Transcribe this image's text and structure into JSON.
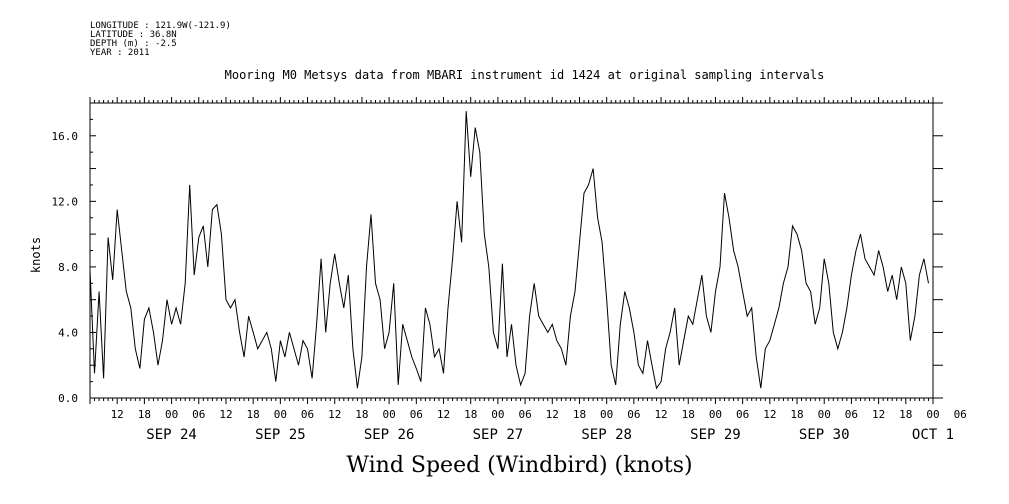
{
  "header": {
    "longitude": "LONGITUDE : 121.9W(-121.9)",
    "latitude": "LATITUDE : 36.8N",
    "depth": "DEPTH (m) : -2.5",
    "year": "YEAR : 2011"
  },
  "chart_data": {
    "type": "line",
    "title": "Mooring M0 Metsys data from MBARI instrument id 1424 at original sampling intervals",
    "xlabel": "Wind Speed (Windbird) (knots)",
    "ylabel": "knots",
    "x_unit": "hours since SEP 23 06:00, 2011",
    "xlim": [
      0,
      186
    ],
    "ylim": [
      0,
      18
    ],
    "y_ticks": [
      "0.0",
      "4.0",
      "8.0",
      "12.0",
      "16.0"
    ],
    "x_hour_ticks": [
      "12",
      "18",
      "00",
      "06",
      "12",
      "18",
      "00",
      "06",
      "12",
      "18",
      "00",
      "06",
      "12",
      "18",
      "00",
      "06",
      "12",
      "18",
      "00",
      "06",
      "12",
      "18",
      "00",
      "06",
      "12",
      "18",
      "00",
      "06",
      "12",
      "18",
      "00",
      "06"
    ],
    "x_day_labels": [
      "SEP 24",
      "SEP 25",
      "SEP 26",
      "SEP 27",
      "SEP 28",
      "SEP 29",
      "SEP 30",
      "OCT  1"
    ],
    "grid": false,
    "series": [
      {
        "name": "",
        "x": [
          0,
          1,
          2,
          3,
          4,
          5,
          6,
          7,
          8,
          9,
          10,
          11,
          12,
          13,
          14,
          15,
          16,
          17,
          18,
          19,
          20,
          21,
          22,
          23,
          24,
          25,
          26,
          27,
          28,
          29,
          30,
          31,
          32,
          33,
          34,
          35,
          36,
          37,
          38,
          39,
          40,
          41,
          42,
          43,
          44,
          45,
          46,
          47,
          48,
          49,
          50,
          51,
          52,
          53,
          54,
          55,
          56,
          57,
          58,
          59,
          60,
          61,
          62,
          63,
          64,
          65,
          66,
          67,
          68,
          69,
          70,
          71,
          72,
          73,
          74,
          75,
          76,
          77,
          78,
          79,
          80,
          81,
          82,
          83,
          84,
          85,
          86,
          87,
          88,
          89,
          90,
          91,
          92,
          93,
          94,
          95,
          96,
          97,
          98,
          99,
          100,
          101,
          102,
          103,
          104,
          105,
          106,
          107,
          108,
          109,
          110,
          111,
          112,
          113,
          114,
          115,
          116,
          117,
          118,
          119,
          120,
          121,
          122,
          123,
          124,
          125,
          126,
          127,
          128,
          129,
          130,
          131,
          132,
          133,
          134,
          135,
          136,
          137,
          138,
          139,
          140,
          141,
          142,
          143,
          144,
          145,
          146,
          147,
          148,
          149,
          150,
          151,
          152,
          153,
          154,
          155,
          156,
          157,
          158,
          159,
          160,
          161,
          162,
          163,
          164,
          165,
          166,
          167,
          168,
          169,
          170,
          171,
          172,
          173,
          174,
          175,
          176,
          177,
          178,
          179,
          180,
          181,
          182,
          183,
          184,
          185
        ],
        "values": [
          7.8,
          1.5,
          6.5,
          1.2,
          9.8,
          7.2,
          11.5,
          9.0,
          6.5,
          5.5,
          3.0,
          1.8,
          4.8,
          5.5,
          4.0,
          2.0,
          3.5,
          6.0,
          4.5,
          5.5,
          4.5,
          7.0,
          13.0,
          7.5,
          9.8,
          10.5,
          8.0,
          11.5,
          11.8,
          10.0,
          6.0,
          5.5,
          6.0,
          4.0,
          2.5,
          5.0,
          4.0,
          3.0,
          3.5,
          4.0,
          3.0,
          1.0,
          3.5,
          2.5,
          4.0,
          3.0,
          2.0,
          3.5,
          3.0,
          1.2,
          4.5,
          8.5,
          4.0,
          7.0,
          8.8,
          7.0,
          5.5,
          7.5,
          3.0,
          0.6,
          2.5,
          8.0,
          11.2,
          7.0,
          6.0,
          3.0,
          4.0,
          7.0,
          0.8,
          4.5,
          3.5,
          2.5,
          1.8,
          1.0,
          5.5,
          4.5,
          2.5,
          3.0,
          1.5,
          5.5,
          8.5,
          12.0,
          9.5,
          17.5,
          13.5,
          16.5,
          15.0,
          10.0,
          8.0,
          4.0,
          3.0,
          8.2,
          2.5,
          4.5,
          2.0,
          0.8,
          1.5,
          5.0,
          7.0,
          5.0,
          4.5,
          4.0,
          4.5,
          3.5,
          3.0,
          2.0,
          5.0,
          6.5,
          9.5,
          12.5,
          13.0,
          14.0,
          11.0,
          9.5,
          6.0,
          2.0,
          0.8,
          4.5,
          6.5,
          5.5,
          4.0,
          2.0,
          1.5,
          3.5,
          2.0,
          0.6,
          1.0,
          3.0,
          4.0,
          5.5,
          2.0,
          3.5,
          5.0,
          4.5,
          6.0,
          7.5,
          5.0,
          4.0,
          6.5,
          8.0,
          12.5,
          11.0,
          9.0,
          8.0,
          6.5,
          5.0,
          5.5,
          2.5,
          0.6,
          3.0,
          3.5,
          4.5,
          5.5,
          7.0,
          8.0,
          10.5,
          10.0,
          9.0,
          7.0,
          6.5,
          4.5,
          5.5,
          8.5,
          7.0,
          4.0,
          3.0,
          4.0,
          5.5,
          7.5,
          9.0,
          10.0,
          8.5,
          8.0,
          7.5,
          9.0,
          8.0,
          6.5,
          7.5,
          6.0,
          8.0,
          7.0,
          3.5,
          5.0,
          7.5,
          8.5,
          7.0
        ]
      }
    ]
  }
}
